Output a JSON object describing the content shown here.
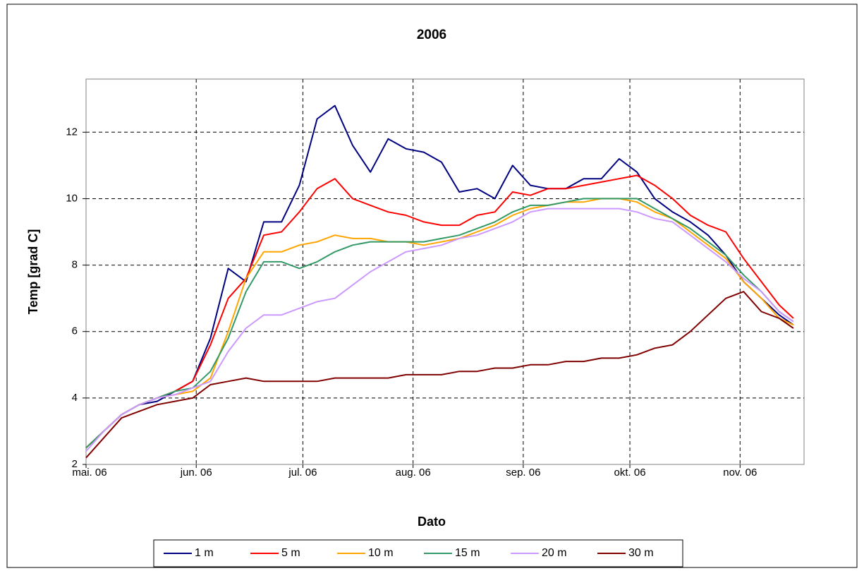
{
  "chart_data": {
    "type": "line",
    "title": "2006",
    "x_label": "Dato",
    "y_label": "Temp [grad C]",
    "x": [
      0,
      5,
      10,
      15,
      20,
      25,
      30,
      35,
      40,
      45,
      50,
      55,
      60,
      65,
      70,
      75,
      80,
      85,
      90,
      95,
      100,
      105,
      110,
      115,
      120,
      125,
      130,
      135,
      140,
      145,
      150,
      155,
      160,
      165,
      170,
      175,
      180,
      185,
      190,
      195,
      199
    ],
    "xlim": [
      0,
      202
    ],
    "xticks": [
      {
        "value": 0,
        "label": "mai. 06"
      },
      {
        "value": 31,
        "label": "jun. 06"
      },
      {
        "value": 61,
        "label": "jul. 06"
      },
      {
        "value": 92,
        "label": "aug. 06"
      },
      {
        "value": 123,
        "label": "sep. 06"
      },
      {
        "value": 153,
        "label": "okt. 06"
      },
      {
        "value": 184,
        "label": "nov. 06"
      }
    ],
    "ylim": [
      2,
      13.6
    ],
    "yticks": [
      2,
      4,
      6,
      8,
      10,
      12
    ],
    "grid": true,
    "legend": "bottom",
    "series": [
      {
        "name": "1 m",
        "color": "#000080",
        "values": [
          2.5,
          3.0,
          3.5,
          3.8,
          3.9,
          4.2,
          4.5,
          5.8,
          7.9,
          7.5,
          9.3,
          9.3,
          10.4,
          12.4,
          12.8,
          11.6,
          10.8,
          11.8,
          11.5,
          11.4,
          11.1,
          10.2,
          10.3,
          10.0,
          11.0,
          10.4,
          10.3,
          10.3,
          10.6,
          10.6,
          11.2,
          10.8,
          10.0,
          9.6,
          9.3,
          8.9,
          8.3,
          7.5,
          7.0,
          6.5,
          6.2
        ]
      },
      {
        "name": "5 m",
        "color": "#ff0000",
        "values": [
          2.5,
          3.0,
          3.5,
          3.8,
          4.0,
          4.2,
          4.5,
          5.6,
          7.0,
          7.6,
          8.9,
          9.0,
          9.6,
          10.3,
          10.6,
          10.0,
          9.8,
          9.6,
          9.5,
          9.3,
          9.2,
          9.2,
          9.5,
          9.6,
          10.2,
          10.1,
          10.3,
          10.3,
          10.4,
          10.5,
          10.6,
          10.7,
          10.4,
          10.0,
          9.5,
          9.2,
          9.0,
          8.2,
          7.5,
          6.8,
          6.4
        ]
      },
      {
        "name": "10 m",
        "color": "#ffa500",
        "values": [
          2.5,
          3.0,
          3.5,
          3.8,
          4.0,
          4.1,
          4.2,
          4.6,
          6.0,
          7.6,
          8.4,
          8.4,
          8.6,
          8.7,
          8.9,
          8.8,
          8.8,
          8.7,
          8.7,
          8.6,
          8.7,
          8.8,
          9.0,
          9.2,
          9.5,
          9.7,
          9.8,
          9.9,
          9.9,
          10.0,
          10.0,
          9.9,
          9.6,
          9.4,
          9.0,
          8.6,
          8.2,
          7.5,
          7.0,
          6.4,
          6.2
        ]
      },
      {
        "name": "15 m",
        "color": "#339966",
        "values": [
          2.5,
          3.0,
          3.5,
          3.8,
          4.0,
          4.2,
          4.3,
          4.8,
          5.8,
          7.2,
          8.1,
          8.1,
          7.9,
          8.1,
          8.4,
          8.6,
          8.7,
          8.7,
          8.7,
          8.7,
          8.8,
          8.9,
          9.1,
          9.3,
          9.6,
          9.8,
          9.8,
          9.9,
          10.0,
          10.0,
          10.0,
          10.0,
          9.7,
          9.4,
          9.1,
          8.7,
          8.3,
          7.7,
          7.2,
          6.6,
          6.3
        ]
      },
      {
        "name": "20 m",
        "color": "#cc99ff",
        "values": [
          2.4,
          3.0,
          3.5,
          3.8,
          4.0,
          4.1,
          4.3,
          4.5,
          5.4,
          6.1,
          6.5,
          6.5,
          6.7,
          6.9,
          7.0,
          7.4,
          7.8,
          8.1,
          8.4,
          8.5,
          8.6,
          8.8,
          8.9,
          9.1,
          9.3,
          9.6,
          9.7,
          9.7,
          9.7,
          9.7,
          9.7,
          9.6,
          9.4,
          9.3,
          8.9,
          8.5,
          8.1,
          7.6,
          7.2,
          6.6,
          6.3
        ]
      },
      {
        "name": "30 m",
        "color": "#800000",
        "values": [
          2.2,
          2.8,
          3.4,
          3.6,
          3.8,
          3.9,
          4.0,
          4.4,
          4.5,
          4.6,
          4.5,
          4.5,
          4.5,
          4.5,
          4.6,
          4.6,
          4.6,
          4.6,
          4.7,
          4.7,
          4.7,
          4.8,
          4.8,
          4.9,
          4.9,
          5.0,
          5.0,
          5.1,
          5.1,
          5.2,
          5.2,
          5.3,
          5.5,
          5.6,
          6.0,
          6.5,
          7.0,
          7.2,
          6.6,
          6.4,
          6.1
        ]
      }
    ]
  }
}
